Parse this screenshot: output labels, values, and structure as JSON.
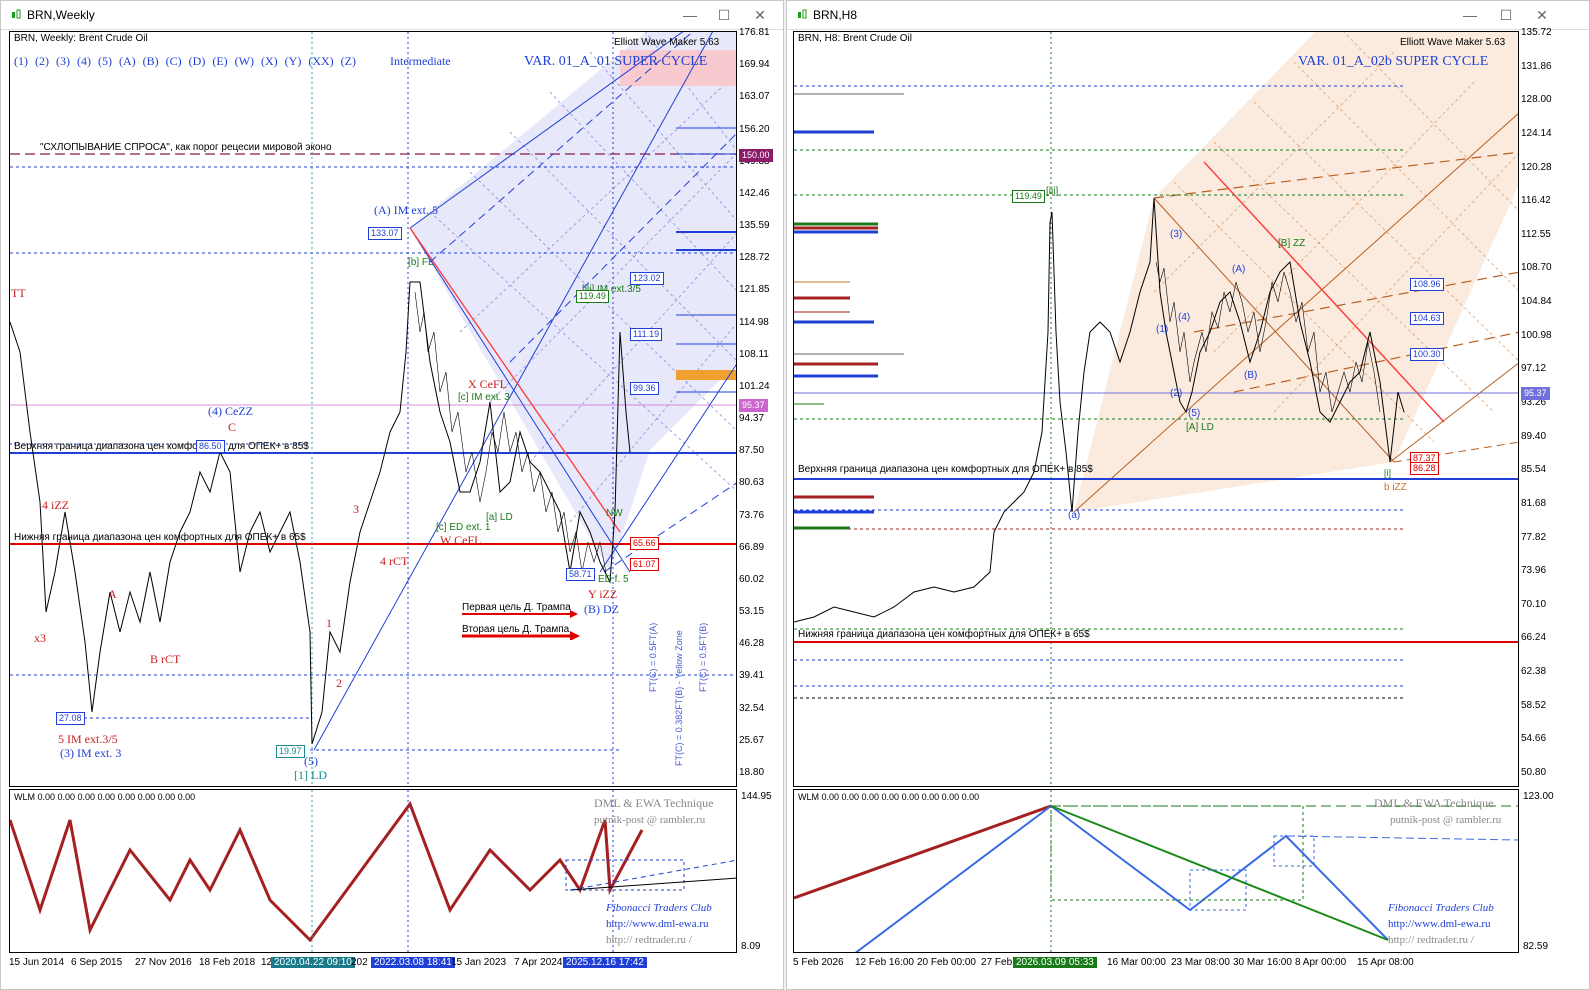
{
  "left_window": {
    "title": "BRN,Weekly",
    "header": "BRN, Weekly:  Brent Crude Oil",
    "wave_buttons": [
      "(1)",
      "(2)",
      "(3)",
      "(4)",
      "(5)",
      "(A)",
      "(B)",
      "(C)",
      "(D)",
      "(E)",
      "(W)",
      "(X)",
      "(Y)",
      "(XX)",
      "(Z)"
    ],
    "degree": "Intermediate",
    "plugin": "Elliott Wave Maker 5.63",
    "var_title": "VAR. 01_A_01 SUPER CYCLE",
    "price_scale": [
      "176.81",
      "169.94",
      "163.07",
      "156.20",
      "149.33",
      "142.46",
      "135.59",
      "128.72",
      "121.85",
      "114.98",
      "108.11",
      "101.24",
      "94.37",
      "87.50",
      "80.63",
      "73.76",
      "66.89",
      "60.02",
      "53.15",
      "46.28",
      "39.41",
      "32.54",
      "25.67",
      "18.80"
    ],
    "price_tags": {
      "p150": "150.00",
      "p9537": "95.37",
      "p8650": "86.50",
      "p12302": "123.02",
      "p11119": "111.19",
      "p9936": "99.36",
      "p6566": "65.66",
      "p6107": "61.07",
      "p13307": "133.07",
      "p11949": "119.49",
      "p5871": "58.71",
      "p2708": "27.08",
      "p1997": "19.97"
    },
    "labels": {
      "collapse": "\"СХЛОПЫВАНИЕ СПРОСА\", как порог рецесии мировой эконо",
      "upper_band": "Верхняя граница диапазона цен комфортных для ОПЕК+ в 85$",
      "lower_band": "Нижняя граница диапазона цен комфортных для ОПЕК+ в 65$",
      "trump1": "Первая цель Д. Трампа",
      "trump2": "Вторая цель Д. Трампа",
      "a_im": "(A) IM ext. 5",
      "four_cezz": "(4) CeZZ",
      "c": "C",
      "x_cefl": "X CeFL",
      "w_cefl": "W CeFL",
      "y_izz": "Y iZZ",
      "b_dz": "(B) DZ",
      "four_izz": "4 iZZ",
      "x3": "x3",
      "a": "A",
      "b_rct": "B rCT",
      "four_rct": "4 rCT",
      "three": "3",
      "one": "1",
      "two": "2",
      "five_im": "5 IM ext.3/5",
      "three_im": "(3) IM ext. 3",
      "five": "(5)",
      "one_ld": "[1] LD",
      "tt": "TT",
      "c_ed": "[c] ED ext. 1",
      "a_ld": "[a] LD",
      "c_im": "[c] IM ext. 3",
      "iii_im": "[iii] IM ext.3/5",
      "b_fl": "[b] FL",
      "ed_f5": "ED f. 5",
      "nw": "NW",
      "ft1": "FT(C) = 0.5FT(A)",
      "ft2": "FT(C) = 0.382FT(B) - Yellow Zone",
      "ft3": "FT(C) = 0.5FT(B)"
    },
    "xaxis": [
      "15 Jun 2014",
      "6 Sep 2015",
      "27 Nov 2016",
      "18 Feb 2018",
      "12",
      "202",
      "15 Jan 2023",
      "7 Apr 2024"
    ],
    "xaxis_hl": [
      "2020.04.22 09:10",
      "2022.03.08 18:41",
      "2025.12.16 17:42"
    ],
    "ind": {
      "title": "WLM 0.00 0.00 0.00 0.00 0.00 0.00 0.00 0.00",
      "top": "144.95",
      "bottom": "8.09",
      "brand1": "DML & EWA Technique",
      "brand2": "putnik-post @ rambler.ru",
      "fib": "Fibonacci     Traders     Club",
      "site1": "http://www.dml-ewa.ru",
      "site2": "http://  redtrader.ru  /"
    }
  },
  "right_window": {
    "title": "BRN,H8",
    "header": "BRN, H8:  Brent Crude Oil",
    "plugin": "Elliott Wave Maker 5.63",
    "var_title": "VAR. 01_A_02b SUPER CYCLE",
    "price_scale": [
      "135.72",
      "131.86",
      "128.00",
      "124.14",
      "120.28",
      "116.42",
      "112.55",
      "108.70",
      "104.84",
      "100.98",
      "97.12",
      "93.26",
      "89.40",
      "85.54",
      "81.68",
      "77.82",
      "73.96",
      "70.10",
      "66.24",
      "62.38",
      "58.52",
      "54.66",
      "50.80"
    ],
    "price_tags": {
      "p119": "119.49",
      "p10896": "108.96",
      "p10463": "104.63",
      "p10030": "100.30",
      "p9537": "95.37",
      "p8737": "87.37",
      "p8628": "86.28"
    },
    "labels": {
      "upper_band": "Верхняя граница диапазона цен комфортных для ОПЕК+ в 85$",
      "lower_band": "Нижняя граница диапазона цен комфортных для ОПЕК+ в 65$",
      "iii": "[iii]",
      "b_zz": "[B] ZZ",
      "a_ld": "[A] LD",
      "b_izz": "b iZZ",
      "a_small": "(a)",
      "one": "(1)",
      "two": "(2)",
      "three": "(3)",
      "four": "(4)",
      "five": "(5)",
      "A": "(A)",
      "B": "(B)",
      "dot": "[i]"
    },
    "xaxis": [
      "5 Feb 2026",
      "12 Feb 16:00",
      "20 Feb 00:00",
      "27 Feb",
      "16 Mar 00:00",
      "23 Mar 08:00",
      "30 Mar 16:00",
      "8 Apr 00:00",
      "15 Apr 08:00"
    ],
    "xaxis_hl": [
      "2026.03.09 05:33"
    ],
    "ind": {
      "title": "WLM 0.00 0.00 0.00 0.00 0.00 0.00 0.00 0.00",
      "top": "123.00",
      "bottom": "82.59",
      "brand1": "DML & EWA Technique",
      "brand2": "putnik-post @ rambler.ru",
      "fib": "Fibonacci     Traders     Club",
      "site1": "http://www.dml-ewa.ru",
      "site2": "http://  redtrader.ru  /"
    }
  },
  "colors": {
    "blue": "#1f3fd6",
    "red": "#e00000",
    "darkred": "#a52020",
    "green": "#1a7a1a",
    "magenta": "#b03090",
    "orange": "#c8782c"
  }
}
